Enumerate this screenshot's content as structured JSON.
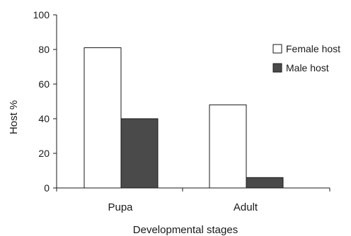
{
  "chart_data": {
    "type": "bar",
    "categories": [
      "Pupa",
      "Adult"
    ],
    "series": [
      {
        "name": "Female host",
        "values": [
          81,
          48
        ],
        "color": "#ffffff"
      },
      {
        "name": "Male host",
        "values": [
          40,
          6
        ],
        "color": "#4a4a4a"
      }
    ],
    "xlabel": "Developmental stages",
    "ylabel": "Host %",
    "ylim": [
      0,
      100
    ],
    "yticks": [
      "0",
      "20",
      "40",
      "60",
      "80",
      "100"
    ],
    "grid": false,
    "legend_position": "top-right"
  }
}
